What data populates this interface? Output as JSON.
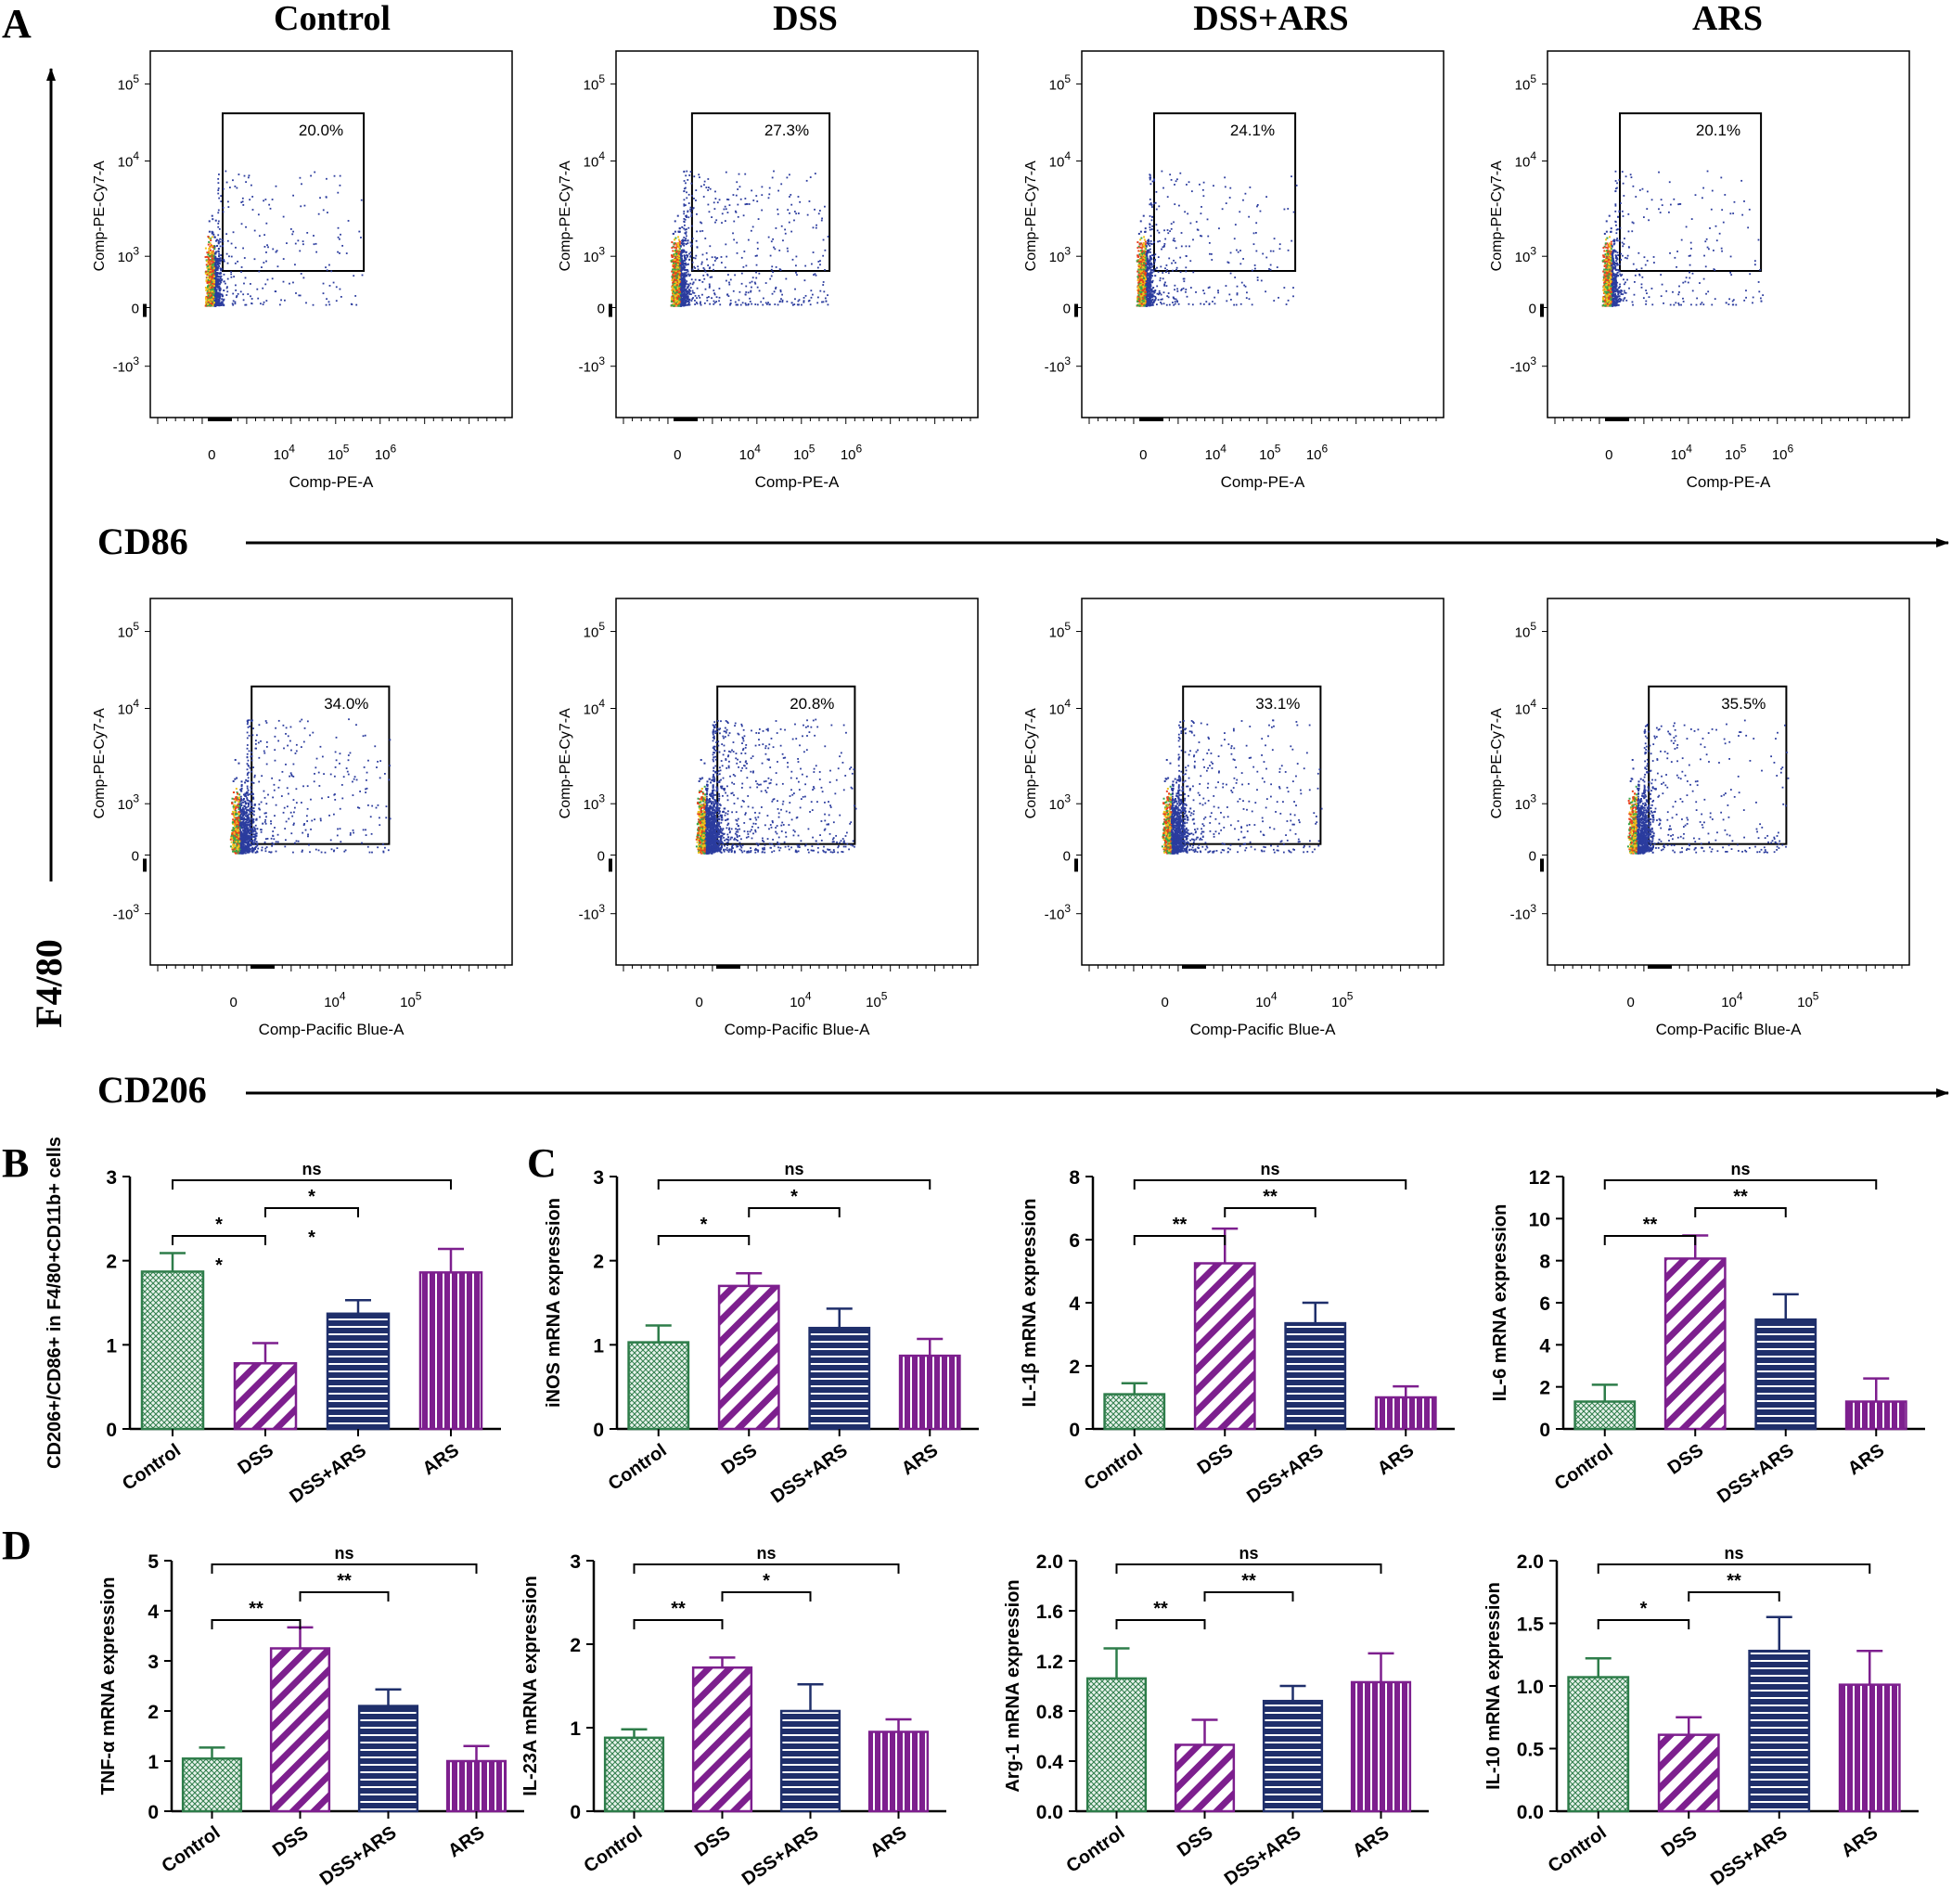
{
  "panel_labels": {
    "a": "A",
    "b": "B",
    "c": "C",
    "d": "D"
  },
  "groups": [
    "Control",
    "DSS",
    "DSS+ARS",
    "ARS"
  ],
  "axis_labels": {
    "vertical": "F4/80",
    "row1": "CD86",
    "row2": "CD206"
  },
  "flow": {
    "row1_y_label": "Comp-PE-Cy7-A",
    "row1_x_label": "Comp-PE-A",
    "row2_y_label": "Comp-PE-Cy7-A",
    "row2_x_label": "Comp-Pacific Blue-A",
    "row1_percentages": [
      "20.0%",
      "27.3%",
      "24.1%",
      "20.1%"
    ],
    "row2_percentages": [
      "34.0%",
      "20.8%",
      "33.1%",
      "35.5%"
    ],
    "y_ticks": [
      "10^5",
      "10^4",
      "10^3",
      "0",
      "-10^3"
    ],
    "row1_x_ticks": [
      "0",
      "10^4",
      "10^5",
      "10^6"
    ],
    "row2_x_ticks": [
      "0",
      "10^4",
      "10^5"
    ]
  },
  "chart_data": [
    {
      "id": "B",
      "type": "bar",
      "title": "",
      "ylabel": "CD206+/CD86+ in F4/80+CD11b+ cells",
      "categories": [
        "Control",
        "DSS",
        "DSS+ARS",
        "ARS"
      ],
      "values": [
        1.87,
        0.78,
        1.37,
        1.86
      ],
      "errors": [
        0.22,
        0.24,
        0.16,
        0.28
      ],
      "ylim": [
        0,
        3
      ],
      "yticks": [
        "0",
        "1",
        "2",
        "3"
      ],
      "sig": [
        {
          "from": 0,
          "to": 1,
          "label": "*"
        },
        {
          "from": 1,
          "to": 2,
          "label": "*"
        },
        {
          "from": 0,
          "to": 3,
          "label": "ns"
        }
      ],
      "extra_marks": [
        "*",
        "*"
      ]
    },
    {
      "id": "C1",
      "type": "bar",
      "ylabel": "iNOS mRNA expression",
      "categories": [
        "Control",
        "DSS",
        "DSS+ARS",
        "ARS"
      ],
      "values": [
        1.03,
        1.7,
        1.2,
        0.87
      ],
      "errors": [
        0.2,
        0.15,
        0.23,
        0.2
      ],
      "ylim": [
        0,
        3
      ],
      "yticks": [
        "0",
        "1",
        "2",
        "3"
      ],
      "sig": [
        {
          "from": 0,
          "to": 1,
          "label": "*"
        },
        {
          "from": 1,
          "to": 2,
          "label": "*"
        },
        {
          "from": 0,
          "to": 3,
          "label": "ns"
        }
      ]
    },
    {
      "id": "C2",
      "type": "bar",
      "ylabel": "IL-1β mRNA expression",
      "categories": [
        "Control",
        "DSS",
        "DSS+ARS",
        "ARS"
      ],
      "values": [
        1.1,
        5.25,
        3.35,
        1.0
      ],
      "errors": [
        0.35,
        1.1,
        0.65,
        0.35
      ],
      "ylim": [
        0,
        8
      ],
      "yticks": [
        "0",
        "2",
        "4",
        "6",
        "8"
      ],
      "sig": [
        {
          "from": 0,
          "to": 1,
          "label": "**"
        },
        {
          "from": 1,
          "to": 2,
          "label": "**"
        },
        {
          "from": 0,
          "to": 3,
          "label": "ns"
        }
      ]
    },
    {
      "id": "C3",
      "type": "bar",
      "ylabel": "IL-6 mRNA expression",
      "categories": [
        "Control",
        "DSS",
        "DSS+ARS",
        "ARS"
      ],
      "values": [
        1.3,
        8.1,
        5.2,
        1.3
      ],
      "errors": [
        0.8,
        1.1,
        1.2,
        1.1
      ],
      "ylim": [
        0,
        12
      ],
      "yticks": [
        "0",
        "2",
        "4",
        "6",
        "8",
        "10",
        "12"
      ],
      "sig": [
        {
          "from": 0,
          "to": 1,
          "label": "**"
        },
        {
          "from": 1,
          "to": 2,
          "label": "**"
        },
        {
          "from": 0,
          "to": 3,
          "label": "ns"
        }
      ]
    },
    {
      "id": "D1",
      "type": "bar",
      "ylabel": "TNF-α mRNA expression",
      "categories": [
        "Control",
        "DSS",
        "DSS+ARS",
        "ARS"
      ],
      "values": [
        1.05,
        3.25,
        2.1,
        1.0
      ],
      "errors": [
        0.22,
        0.42,
        0.33,
        0.3
      ],
      "ylim": [
        0,
        5
      ],
      "yticks": [
        "0",
        "1",
        "2",
        "3",
        "4",
        "5"
      ],
      "sig": [
        {
          "from": 0,
          "to": 1,
          "label": "**"
        },
        {
          "from": 1,
          "to": 2,
          "label": "**"
        },
        {
          "from": 0,
          "to": 3,
          "label": "ns"
        }
      ]
    },
    {
      "id": "D2",
      "type": "bar",
      "ylabel": "IL-23A mRNA expression",
      "categories": [
        "Control",
        "DSS",
        "DSS+ARS",
        "ARS"
      ],
      "values": [
        0.88,
        1.72,
        1.2,
        0.95
      ],
      "errors": [
        0.1,
        0.12,
        0.32,
        0.15
      ],
      "ylim": [
        0,
        3
      ],
      "yticks": [
        "0",
        "1",
        "2",
        "3"
      ],
      "sig": [
        {
          "from": 0,
          "to": 1,
          "label": "**"
        },
        {
          "from": 1,
          "to": 2,
          "label": "*"
        },
        {
          "from": 0,
          "to": 3,
          "label": "ns"
        }
      ]
    },
    {
      "id": "D3",
      "type": "bar",
      "ylabel": "Arg-1 mRNA expression",
      "categories": [
        "Control",
        "DSS",
        "DSS+ARS",
        "ARS"
      ],
      "values": [
        1.06,
        0.53,
        0.88,
        1.03
      ],
      "errors": [
        0.24,
        0.2,
        0.12,
        0.23
      ],
      "ylim": [
        0,
        2
      ],
      "yticks": [
        "0.0",
        "0.4",
        "0.8",
        "1.2",
        "1.6",
        "2.0"
      ],
      "sig": [
        {
          "from": 0,
          "to": 1,
          "label": "**"
        },
        {
          "from": 1,
          "to": 2,
          "label": "**"
        },
        {
          "from": 0,
          "to": 3,
          "label": "ns"
        }
      ]
    },
    {
      "id": "D4",
      "type": "bar",
      "ylabel": "IL-10 mRNA expression",
      "categories": [
        "Control",
        "DSS",
        "DSS+ARS",
        "ARS"
      ],
      "values": [
        1.07,
        0.61,
        1.28,
        1.01
      ],
      "errors": [
        0.15,
        0.14,
        0.27,
        0.27
      ],
      "ylim": [
        0,
        2
      ],
      "yticks": [
        "0.0",
        "0.5",
        "1.0",
        "1.5",
        "2.0"
      ],
      "sig": [
        {
          "from": 0,
          "to": 1,
          "label": "*"
        },
        {
          "from": 1,
          "to": 2,
          "label": "**"
        },
        {
          "from": 0,
          "to": 3,
          "label": "ns"
        }
      ]
    }
  ],
  "colors": {
    "control": "#2e7d4a",
    "dss": "#7d1f8e",
    "dss_ars": "#1f2f6b",
    "ars": "#7d1f8e",
    "axis": "#000000",
    "dot_blue": "#2b3c9e"
  }
}
